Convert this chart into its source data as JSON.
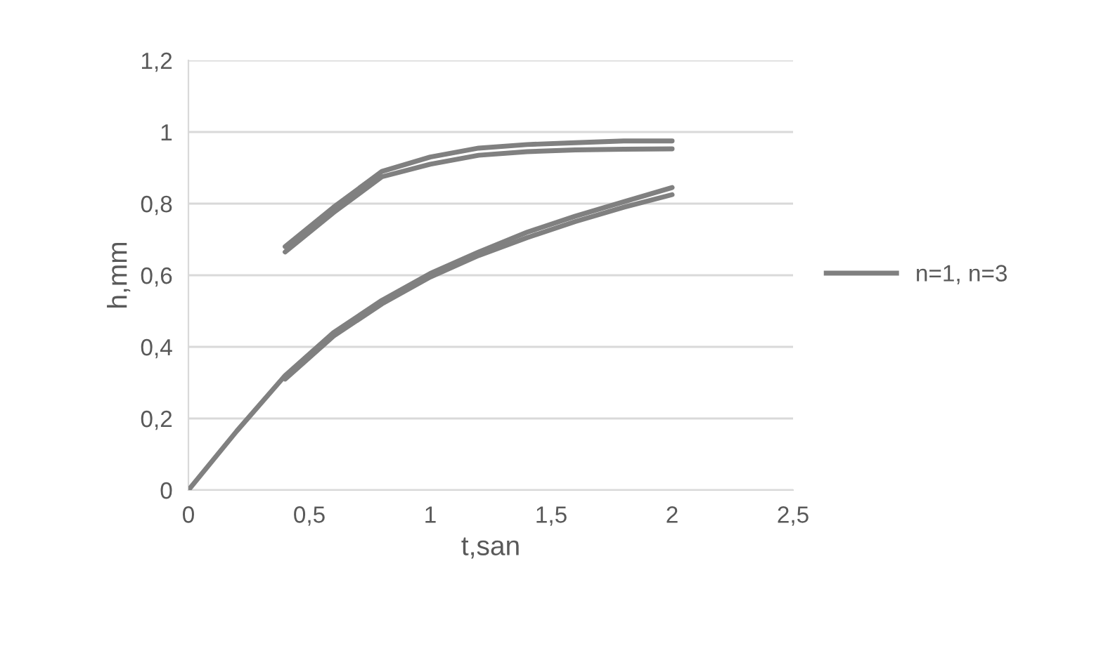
{
  "chart_data": {
    "type": "line",
    "xlabel": "t,san",
    "ylabel": "h,mm",
    "xlim": [
      0,
      2.5
    ],
    "xticks": [
      0,
      {
        "value": 0.5,
        "label": "0,5"
      },
      1,
      {
        "value": 1.5,
        "label": "1,5"
      },
      2,
      {
        "value": 2.5,
        "label": "2,5"
      }
    ],
    "ylim": [
      0,
      1.2
    ],
    "yticks": [
      0,
      {
        "value": 0.2,
        "label": "0,2"
      },
      {
        "value": 0.4,
        "label": "0,4"
      },
      {
        "value": 0.6,
        "label": "0,6"
      },
      {
        "value": 0.8,
        "label": "0,8"
      },
      1,
      {
        "value": 1.2,
        "label": "1,2"
      }
    ],
    "grid": "y",
    "legend": "right",
    "marker": "none",
    "line_style": "solid",
    "series": [
      {
        "name": "n=1, n=3",
        "color": "#808080",
        "x": [
          0,
          0.2,
          0.4,
          0.6,
          0.8,
          1,
          1.2,
          1.4,
          1.6,
          1.8,
          2
        ],
        "values": [
          0,
          0.165,
          0.32,
          0.44,
          0.53,
          0.605,
          0.665,
          0.72,
          0.765,
          0.805,
          0.845
        ]
      },
      {
        "color": "#808080",
        "x": [
          0.4,
          0.6,
          0.8,
          1,
          1.2,
          1.4,
          1.6,
          1.8,
          2
        ],
        "values": [
          0.31,
          0.43,
          0.52,
          0.595,
          0.655,
          0.705,
          0.75,
          0.79,
          0.825
        ]
      },
      {
        "color": "#808080",
        "x": [
          0.4,
          0.6,
          0.8,
          1,
          1.2,
          1.4,
          1.6,
          1.8,
          2
        ],
        "values": [
          0.68,
          0.79,
          0.89,
          0.93,
          0.955,
          0.965,
          0.97,
          0.975,
          0.975
        ]
      },
      {
        "color": "#808080",
        "x": [
          0.4,
          0.6,
          0.8,
          1,
          1.2,
          1.4,
          1.6,
          1.8,
          2
        ],
        "values": [
          0.665,
          0.775,
          0.875,
          0.91,
          0.935,
          0.945,
          0.95,
          0.952,
          0.953
        ]
      }
    ]
  }
}
